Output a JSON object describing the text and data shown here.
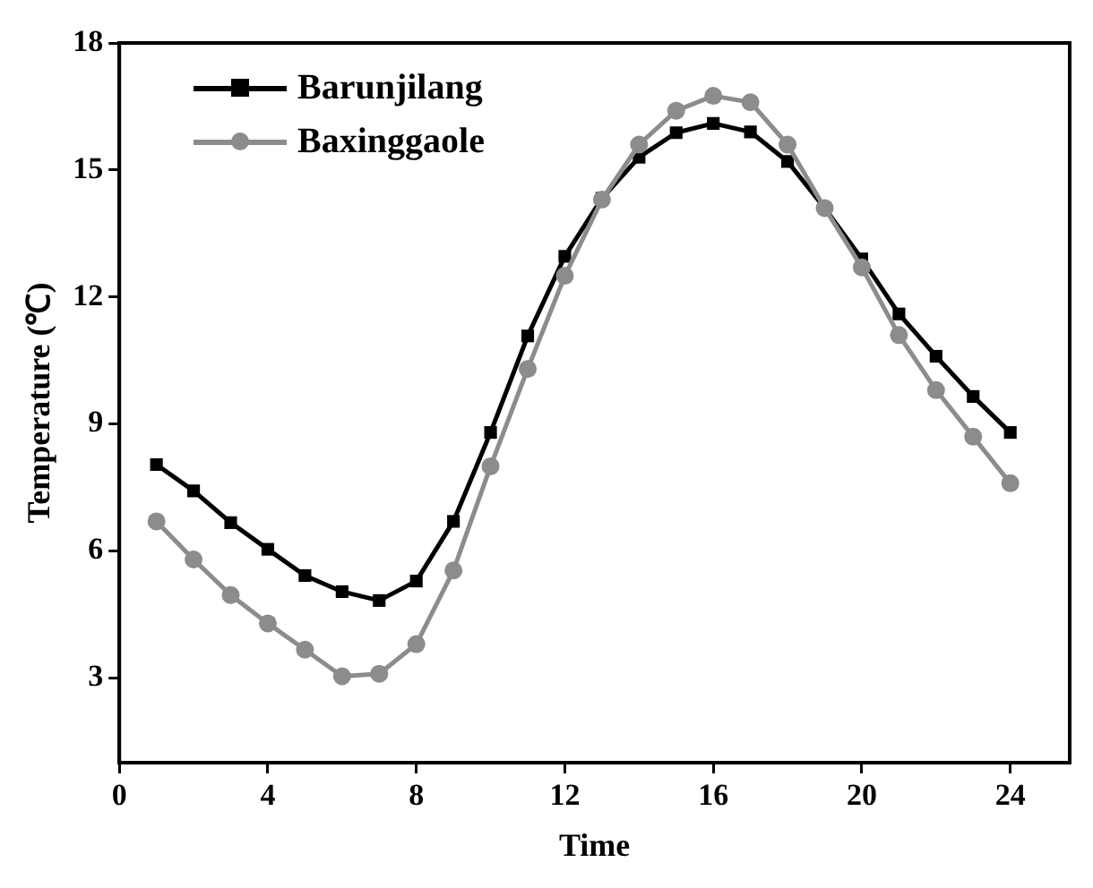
{
  "chart_data": {
    "type": "line",
    "xlabel": "Time",
    "ylabel": "Temperature (℃)",
    "x": [
      1,
      2,
      3,
      4,
      5,
      6,
      7,
      8,
      9,
      10,
      11,
      12,
      13,
      14,
      15,
      16,
      17,
      18,
      19,
      20,
      21,
      22,
      23,
      24
    ],
    "series": [
      {
        "name": "Barunjilang",
        "color": "#000000",
        "marker": "square",
        "values": [
          8.04,
          7.42,
          6.67,
          6.04,
          5.42,
          5.04,
          4.83,
          5.29,
          6.7,
          8.8,
          11.08,
          12.96,
          14.33,
          15.3,
          15.88,
          16.1,
          15.9,
          15.2,
          14.1,
          12.9,
          11.6,
          10.6,
          9.65,
          8.8
        ]
      },
      {
        "name": "Baxinggaole",
        "color": "#8c8c8c",
        "marker": "circle",
        "values": [
          6.7,
          5.8,
          4.96,
          4.29,
          3.67,
          3.04,
          3.1,
          3.8,
          5.54,
          8.0,
          10.3,
          12.5,
          14.3,
          15.6,
          16.4,
          16.75,
          16.6,
          15.6,
          14.1,
          12.7,
          11.1,
          9.8,
          8.7,
          7.6
        ]
      }
    ],
    "xlim": [
      0,
      25.6
    ],
    "xticks": [
      0,
      4,
      8,
      12,
      16,
      20,
      24
    ],
    "ylim": [
      1,
      18
    ],
    "yticks": [
      3,
      6,
      9,
      12,
      15,
      18
    ],
    "grid": false,
    "legend": "top left"
  }
}
